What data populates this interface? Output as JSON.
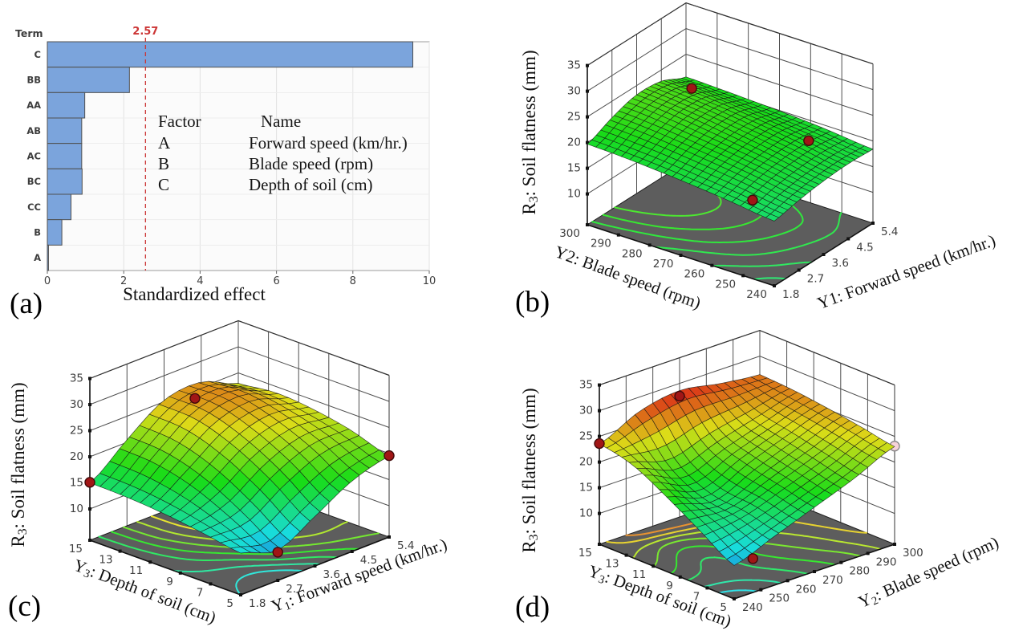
{
  "figure": {
    "background": "#ffffff",
    "panel_letters": [
      "(a)",
      "(b)",
      "(c)",
      "(d)"
    ]
  },
  "chart_data": [
    {
      "id": "a",
      "panel_label": "(a)",
      "type": "bar",
      "orientation": "horizontal",
      "ylabel": "Term",
      "xlabel": "Standardized effect",
      "categories": [
        "C",
        "BB",
        "AA",
        "AB",
        "AC",
        "BC",
        "CC",
        "B",
        "A"
      ],
      "values": [
        9.57,
        2.15,
        0.98,
        0.9,
        0.9,
        0.91,
        0.62,
        0.38,
        0.03
      ],
      "xticks": [
        0,
        2,
        4,
        6,
        8,
        10
      ],
      "xlim": [
        0,
        10
      ],
      "grid": true,
      "reference_line": {
        "value": 2.57,
        "label": "2.57"
      },
      "legend_table": {
        "headers": [
          "Factor",
          "Name"
        ],
        "rows": [
          [
            "A",
            "Forward speed (km/hr.)"
          ],
          [
            "B",
            "Blade speed (rpm)"
          ],
          [
            "C",
            "Depth of soil (cm)"
          ]
        ]
      },
      "colors": {
        "bar_fill": "#7ba4dc",
        "bar_border": "#4f4f4f",
        "reference": "#cc3434",
        "grid_v": "#e2e2e2",
        "grid_h": "#ededed",
        "plot_bg": "#fbfbfb",
        "border": "#9b9b9b",
        "tick_text": "#3e3e3e"
      }
    },
    {
      "id": "b",
      "panel_label": "(b)",
      "type": "surface3d",
      "z_axis": {
        "label": {
          "pre": "R",
          "sub": "3",
          "post": ": Soil flatness (mm)",
          "subscript": true
        },
        "ticks": [
          10,
          15,
          20,
          25,
          30,
          35
        ]
      },
      "right_axis": {
        "label": {
          "pre": "Y",
          "sub": "1",
          "post": ": Forward speed (km/hr.)",
          "subscript": false
        },
        "ticks": [
          "1.8",
          "2.7",
          "3.6",
          "4.5",
          "5.4"
        ],
        "range": [
          1.8,
          5.4
        ]
      },
      "left_axis": {
        "label": {
          "pre": "Y",
          "sub": "2",
          "post": ": Blade speed (rpm)",
          "subscript": false
        },
        "ticks": [
          "240",
          "250",
          "260",
          "270",
          "280",
          "290",
          "300"
        ],
        "range": [
          240,
          300
        ]
      },
      "surface_z_grid": [
        [
          16.6,
          17.6,
          18.3,
          18.6,
          18.4
        ],
        [
          17.7,
          19.0,
          19.8,
          20.0,
          19.3
        ],
        [
          18.6,
          20.2,
          21.2,
          21.2,
          19.9
        ],
        [
          19.3,
          21.2,
          22.4,
          22.2,
          20.3
        ],
        [
          19.7,
          21.8,
          23.2,
          22.8,
          20.6
        ]
      ],
      "design_points": [
        {
          "right": 2.8,
          "left": 285,
          "z": 22.5,
          "open": true
        },
        {
          "right": 4.7,
          "left": 292,
          "z": 22.3,
          "open": false
        },
        {
          "right": 5.1,
          "left": 258,
          "z": 17.5,
          "open": false
        },
        {
          "right": 2.6,
          "left": 254,
          "z": 15.2,
          "open": false
        }
      ],
      "contour_levels": [
        17,
        18,
        19,
        20,
        21,
        22
      ],
      "color_range": [
        2,
        40
      ],
      "mesh_cells": 22,
      "floor_color": "#5d5d5d"
    },
    {
      "id": "c",
      "panel_label": "(c)",
      "type": "surface3d",
      "z_axis": {
        "label": {
          "pre": "R",
          "sub": "3",
          "post": ": Soil flatness (mm)",
          "subscript": true
        },
        "ticks": [
          10,
          15,
          20,
          25,
          30,
          35
        ]
      },
      "right_axis": {
        "label": {
          "pre": "Y",
          "sub": "1",
          "post": ": Forward speed (km/hr.)",
          "subscript": true
        },
        "ticks": [
          "1.8",
          "2.7",
          "3.6",
          "4.5",
          "5.4"
        ],
        "range": [
          1.8,
          5.4
        ]
      },
      "left_axis": {
        "label": {
          "pre": "Y",
          "sub": "3",
          "post": ": Depth of soil (cm)",
          "subscript": true
        },
        "ticks": [
          "5",
          "7",
          "9",
          "11",
          "13",
          "15"
        ],
        "range": [
          5,
          15
        ]
      },
      "surface_z_grid": [
        [
          12.0,
          9.8,
          13.5,
          17.5,
          19.5
        ],
        [
          13.2,
          14.0,
          18.5,
          21.5,
          21.8
        ],
        [
          14.2,
          17.8,
          22.5,
          24.5,
          23.2
        ],
        [
          14.8,
          20.0,
          25.0,
          26.3,
          23.8
        ],
        [
          15.0,
          20.5,
          25.3,
          26.0,
          23.0
        ]
      ],
      "design_points": [
        {
          "right": 1.8,
          "left": 15,
          "z": 15.1,
          "open": false
        },
        {
          "right": 3.8,
          "left": 13.5,
          "z": 26.6,
          "open": false
        },
        {
          "right": 2.7,
          "left": 5,
          "z": 9.4,
          "open": false
        },
        {
          "right": 5.4,
          "left": 5,
          "z": 19.6,
          "open": false
        }
      ],
      "contour_levels": [
        12,
        14,
        16,
        18,
        20,
        22,
        24
      ],
      "color_range": [
        6,
        30
      ],
      "mesh_cells": 15,
      "floor_color": "#5d5d5d"
    },
    {
      "id": "d",
      "panel_label": "(d)",
      "type": "surface3d",
      "z_axis": {
        "label": {
          "pre": "R",
          "sub": "3",
          "post": ": Soil flatness (mm)",
          "subscript": true
        },
        "ticks": [
          10,
          15,
          20,
          25,
          30,
          35
        ]
      },
      "right_axis": {
        "label": {
          "pre": "Y",
          "sub": "2",
          "post": ": Blade speed (rpm)",
          "subscript": true
        },
        "ticks": [
          "240",
          "250",
          "260",
          "270",
          "280",
          "290",
          "300"
        ],
        "range": [
          240,
          300
        ]
      },
      "left_axis": {
        "label": {
          "pre": "Y",
          "sub": "3",
          "post": ": Depth of soil (cm)",
          "subscript": true
        },
        "ticks": [
          "5",
          "7",
          "9",
          "11",
          "13",
          "15"
        ],
        "range": [
          5,
          15
        ]
      },
      "surface_z_grid": [
        [
          10.5,
          13.5,
          16.5,
          19.5,
          23.0
        ],
        [
          14.5,
          15.2,
          18.0,
          21.0,
          24.2
        ],
        [
          18.5,
          16.0,
          19.5,
          22.5,
          25.2
        ],
        [
          22.0,
          19.5,
          22.0,
          24.0,
          26.0
        ],
        [
          23.5,
          27.2,
          28.6,
          27.3,
          26.4
        ]
      ],
      "design_points": [
        {
          "right": 240,
          "left": 15,
          "z": 23.6,
          "open": false
        },
        {
          "right": 268,
          "left": 14.6,
          "z": 28.3,
          "open": false
        },
        {
          "right": 247,
          "left": 5,
          "z": 10.6,
          "open": false
        },
        {
          "right": 300,
          "left": 5,
          "z": 23.1,
          "open": true
        }
      ],
      "contour_levels": [
        12,
        14,
        16,
        18,
        20,
        22,
        24,
        26
      ],
      "color_range": [
        7,
        29
      ],
      "mesh_cells": 18,
      "floor_color": "#5d5d5d"
    }
  ]
}
